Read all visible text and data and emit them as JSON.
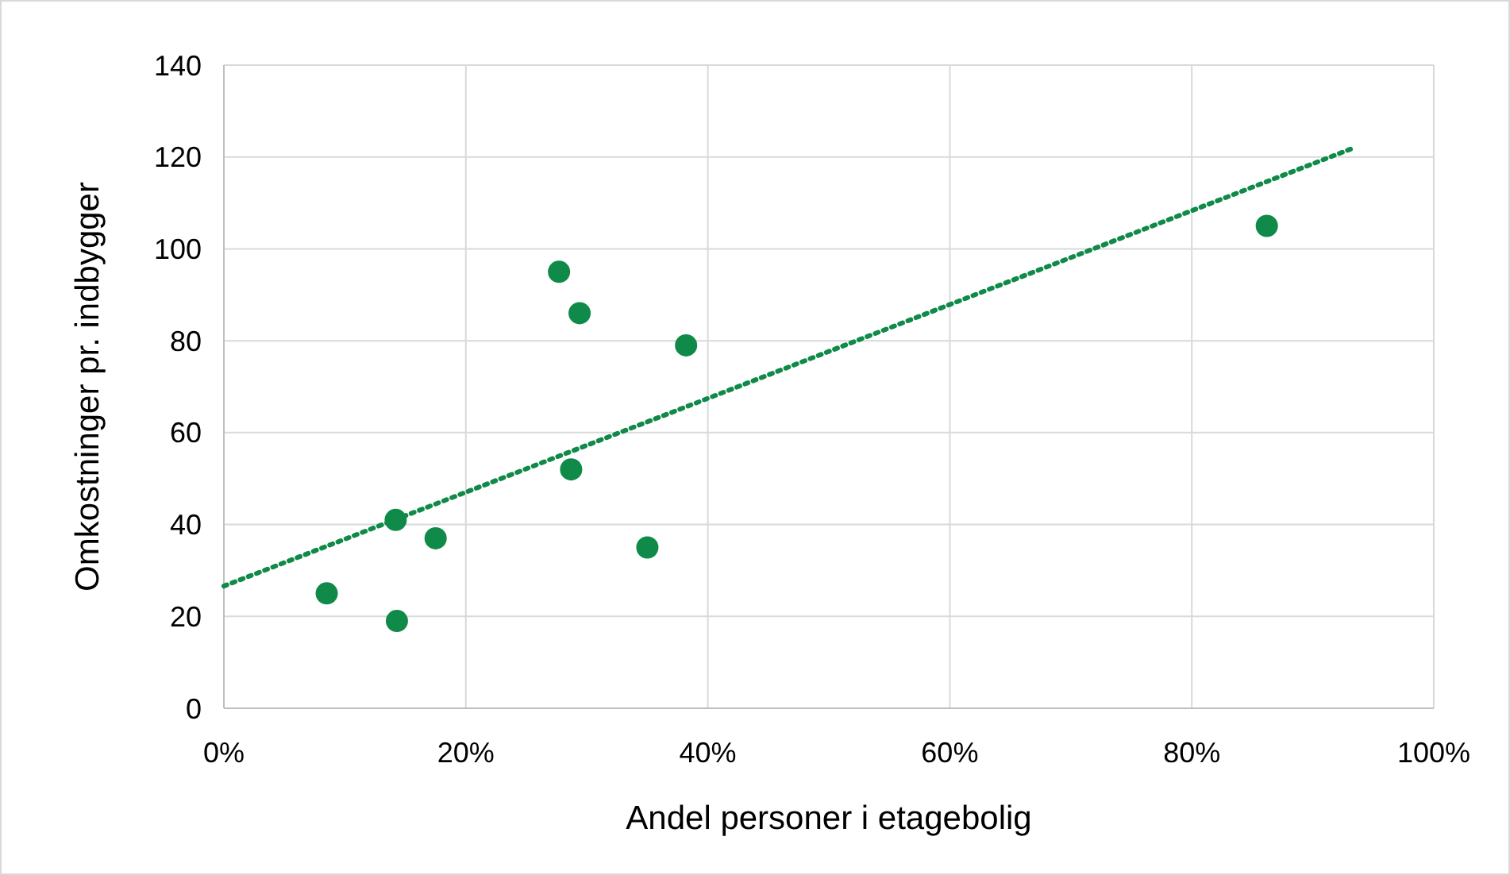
{
  "chart_data": {
    "type": "scatter",
    "xlabel": "Andel personer i etagebolig",
    "ylabel": "Omkostninger pr. indbygger",
    "xlim": [
      0,
      100
    ],
    "ylim": [
      0,
      140
    ],
    "xticks": [
      {
        "value": 0,
        "label": "0%"
      },
      {
        "value": 20,
        "label": "20%"
      },
      {
        "value": 40,
        "label": "40%"
      },
      {
        "value": 60,
        "label": "60%"
      },
      {
        "value": 80,
        "label": "80%"
      },
      {
        "value": 100,
        "label": "100%"
      }
    ],
    "yticks": [
      0,
      20,
      40,
      60,
      80,
      100,
      120,
      140
    ],
    "grid": true,
    "marker": "circle",
    "series": [
      {
        "color": "#108a48",
        "x": [
          8.5,
          14.3,
          14.2,
          17.5,
          27.7,
          29.4,
          28.7,
          35.0,
          38.2,
          86.2
        ],
        "values": [
          25,
          19,
          41,
          37,
          95,
          86,
          52,
          35,
          79,
          105
        ]
      },
      {
        "type": "line",
        "line_style": "dotted",
        "marker": "none",
        "color": "#108a48",
        "x": [
          0,
          93.4
        ],
        "values": [
          26.6,
          122
        ]
      }
    ]
  }
}
